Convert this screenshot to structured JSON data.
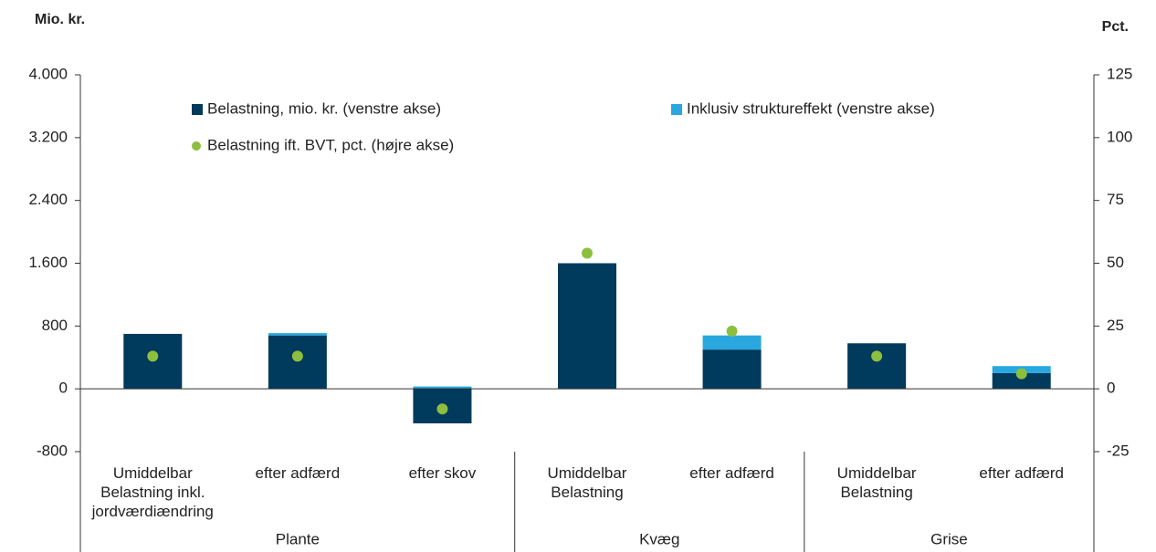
{
  "chart_data": {
    "type": "bar",
    "ylabel": "Mio. kr.",
    "y2label": "Pct.",
    "categories": [
      [
        "Umiddelbar",
        "Belastning inkl.",
        "jordværdiændring"
      ],
      [
        "efter adfærd"
      ],
      [
        "efter skov"
      ],
      [
        "Umiddelbar",
        "Belastning"
      ],
      [
        "efter adfærd"
      ],
      [
        "Umiddelbar",
        "Belastning"
      ],
      [
        "efter adfærd"
      ]
    ],
    "groups": [
      {
        "name": "Plante",
        "count": 3
      },
      {
        "name": "Kvæg",
        "count": 2
      },
      {
        "name": "Grise",
        "count": 2
      }
    ],
    "series": [
      {
        "name": "Belastning, mio. kr. (venstre akse)",
        "color": "#003a5c",
        "kind": "bar",
        "values": [
          700,
          680,
          -440,
          1600,
          500,
          580,
          200
        ]
      },
      {
        "name": "Inklusiv struktureffekt (venstre akse)",
        "color": "#2aa7df",
        "kind": "bar",
        "values": [
          0,
          30,
          30,
          0,
          180,
          0,
          90
        ]
      },
      {
        "name": "Belastning ift. BVT, pct. (højre akse)",
        "color": "#8dbf3e",
        "kind": "dot",
        "axis": "y2",
        "values": [
          13,
          13,
          -8,
          54,
          23,
          13,
          6
        ]
      }
    ],
    "ylim": [
      -800,
      4000
    ],
    "yticks": [
      -800,
      0,
      800,
      {
        "value": 1600,
        "label": "1.600"
      },
      {
        "value": 2400,
        "label": "2.400"
      },
      {
        "value": 3200,
        "label": "3.200"
      },
      {
        "value": 4000,
        "label": "4.000"
      }
    ],
    "y2lim": [
      -25,
      125
    ],
    "y2ticks": [
      -25,
      0,
      25,
      50,
      75,
      100,
      125
    ]
  }
}
